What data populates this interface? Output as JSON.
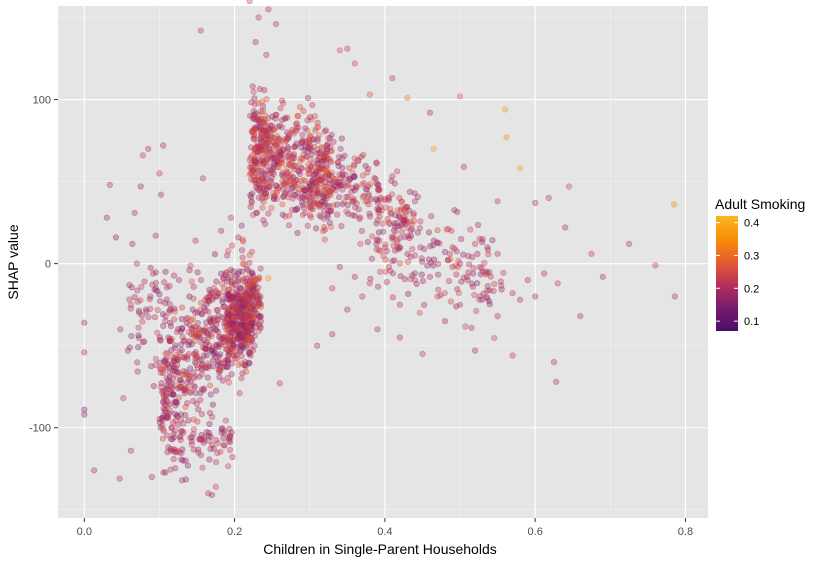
{
  "chart_data": {
    "type": "scatter",
    "title": "",
    "xlabel": "Children in Single-Parent Households",
    "ylabel": "SHAP value",
    "xlim": [
      -0.035,
      0.83
    ],
    "ylim": [
      -155,
      157
    ],
    "x_ticks": [
      0.0,
      0.2,
      0.4,
      0.6,
      0.8
    ],
    "x_tick_labels": [
      "0.0",
      "0.2",
      "0.4",
      "0.6",
      "0.8"
    ],
    "y_ticks": [
      100,
      0,
      -100
    ],
    "y_tick_labels": [
      "100",
      "0",
      "-100"
    ],
    "grid": true,
    "background": "#e5e5e5",
    "point_opacity": 0.35,
    "color_scale": {
      "title": "Adult Smoking",
      "min": 0.07,
      "max": 0.42,
      "ticks": [
        0.1,
        0.2,
        0.3,
        0.4
      ],
      "tick_labels": [
        "0.1",
        "0.2",
        "0.3",
        "0.4"
      ],
      "colors": [
        "#4a0c6b",
        "#781c6d",
        "#b52f5d",
        "#e55c30",
        "#f98e09",
        "#fbb61a"
      ]
    },
    "legend_position": "right",
    "points": [
      [
        0.0,
        -36,
        0.18
      ],
      [
        0.0,
        -54,
        0.2
      ],
      [
        0.0,
        -89,
        0.15
      ],
      [
        0.0,
        -92,
        0.16
      ],
      [
        0.013,
        -126,
        0.2
      ],
      [
        0.03,
        28,
        0.17
      ],
      [
        0.034,
        48,
        0.21
      ],
      [
        0.042,
        16,
        0.16
      ],
      [
        0.047,
        -131,
        0.21
      ],
      [
        0.048,
        -40,
        0.19
      ],
      [
        0.052,
        -82,
        0.22
      ],
      [
        0.058,
        -53,
        0.18
      ],
      [
        0.06,
        -13,
        0.19
      ],
      [
        0.062,
        -114,
        0.2
      ],
      [
        0.064,
        12,
        0.17
      ],
      [
        0.067,
        31,
        0.2
      ],
      [
        0.07,
        0,
        0.21
      ],
      [
        0.075,
        47,
        0.18
      ],
      [
        0.078,
        66,
        0.22
      ],
      [
        0.082,
        -28,
        0.18
      ],
      [
        0.085,
        70,
        0.2
      ],
      [
        0.088,
        -20,
        0.19
      ],
      [
        0.09,
        -130,
        0.2
      ],
      [
        0.095,
        17,
        0.2
      ],
      [
        0.1,
        55,
        0.22
      ],
      [
        0.102,
        42,
        0.18
      ],
      [
        0.105,
        72,
        0.2
      ],
      [
        0.108,
        -5,
        0.16
      ],
      [
        0.112,
        -45,
        0.19
      ],
      [
        0.115,
        -113,
        0.18
      ],
      [
        0.118,
        -70,
        0.2
      ],
      [
        0.122,
        -115,
        0.21
      ],
      [
        0.126,
        -10,
        0.2
      ],
      [
        0.13,
        -132,
        0.19
      ],
      [
        0.135,
        -120,
        0.2
      ],
      [
        0.14,
        -4,
        0.17
      ],
      [
        0.148,
        14,
        0.2
      ],
      [
        0.155,
        142,
        0.22
      ],
      [
        0.158,
        52,
        0.2
      ],
      [
        0.165,
        -140,
        0.2
      ],
      [
        0.17,
        -141,
        0.2
      ],
      [
        0.175,
        -136,
        0.22
      ],
      [
        0.182,
        20,
        0.19
      ],
      [
        0.19,
        5,
        0.2
      ],
      [
        0.195,
        28,
        0.22
      ],
      [
        0.2,
        -9,
        0.3
      ],
      [
        0.205,
        16,
        0.18
      ],
      [
        0.22,
        160,
        0.22
      ],
      [
        0.228,
        135,
        0.2
      ],
      [
        0.232,
        150,
        0.21
      ],
      [
        0.245,
        155,
        0.2
      ],
      [
        0.255,
        146,
        0.22
      ],
      [
        0.26,
        -73,
        0.22
      ],
      [
        0.245,
        -9,
        0.35
      ],
      [
        0.31,
        -50,
        0.2
      ],
      [
        0.33,
        -43,
        0.2
      ],
      [
        0.36,
        122,
        0.24
      ],
      [
        0.34,
        130,
        0.24
      ],
      [
        0.35,
        131,
        0.22
      ],
      [
        0.38,
        103,
        0.26
      ],
      [
        0.41,
        113,
        0.22
      ],
      [
        0.43,
        101,
        0.32
      ],
      [
        0.44,
        38,
        0.2
      ],
      [
        0.46,
        92,
        0.2
      ],
      [
        0.465,
        70,
        0.36
      ],
      [
        0.5,
        102,
        0.26
      ],
      [
        0.505,
        59,
        0.2
      ],
      [
        0.53,
        15,
        0.2
      ],
      [
        0.55,
        38,
        0.22
      ],
      [
        0.56,
        94,
        0.36
      ],
      [
        0.562,
        77,
        0.34
      ],
      [
        0.58,
        58,
        0.38
      ],
      [
        0.59,
        -10,
        0.2
      ],
      [
        0.6,
        37,
        0.2
      ],
      [
        0.612,
        -6,
        0.2
      ],
      [
        0.618,
        40,
        0.22
      ],
      [
        0.625,
        -60,
        0.2
      ],
      [
        0.628,
        -72,
        0.2
      ],
      [
        0.64,
        22,
        0.2
      ],
      [
        0.645,
        47,
        0.24
      ],
      [
        0.66,
        -32,
        0.21
      ],
      [
        0.675,
        6,
        0.22
      ],
      [
        0.69,
        -8,
        0.2
      ],
      [
        0.725,
        12,
        0.21
      ],
      [
        0.76,
        -1,
        0.22
      ],
      [
        0.785,
        36,
        0.34
      ],
      [
        0.786,
        -20,
        0.2
      ],
      [
        0.42,
        -45,
        0.2
      ],
      [
        0.45,
        -55,
        0.22
      ],
      [
        0.48,
        -35,
        0.2
      ],
      [
        0.52,
        -53,
        0.2
      ],
      [
        0.55,
        -32,
        0.2
      ],
      [
        0.57,
        -56,
        0.22
      ],
      [
        0.47,
        -20,
        0.24
      ],
      [
        0.5,
        -25,
        0.2
      ],
      [
        0.4,
        10,
        0.22
      ],
      [
        0.39,
        -40,
        0.2
      ],
      [
        0.37,
        -20,
        0.21
      ],
      [
        0.36,
        -8,
        0.2
      ],
      [
        0.44,
        5,
        0.22
      ],
      [
        0.46,
        -8,
        0.2
      ],
      [
        0.49,
        10,
        0.24
      ],
      [
        0.51,
        -10,
        0.2
      ],
      [
        0.53,
        -5,
        0.22
      ],
      [
        0.55,
        6,
        0.2
      ],
      [
        0.57,
        -18,
        0.21
      ],
      [
        0.58,
        -22,
        0.2
      ],
      [
        0.6,
        -20,
        0.2
      ],
      [
        0.63,
        -12,
        0.22
      ],
      [
        0.5,
        0,
        0.2
      ],
      [
        0.52,
        12,
        0.22
      ],
      [
        0.35,
        -28,
        0.2
      ],
      [
        0.33,
        -15,
        0.22
      ],
      [
        0.34,
        -2,
        0.21
      ],
      [
        0.38,
        -12,
        0.22
      ],
      [
        0.42,
        -25,
        0.21
      ],
      [
        0.44,
        -10,
        0.22
      ],
      [
        0.47,
        13,
        0.2
      ],
      [
        0.49,
        -2,
        0.22
      ]
    ],
    "clusters": [
      {
        "x": [
          0.1,
          0.225
        ],
        "y": [
          -110,
          10
        ],
        "n": 560,
        "seed": 11,
        "tilt": 0.45,
        "colors": [
          0.14,
          0.27
        ]
      },
      {
        "x": [
          0.19,
          0.225
        ],
        "y": [
          -75,
          5
        ],
        "n": 230,
        "seed": 17,
        "tilt": 0.0,
        "colors": [
          0.14,
          0.27
        ]
      },
      {
        "x": [
          0.215,
          0.235
        ],
        "y": [
          -60,
          10
        ],
        "n": 90,
        "seed": 19,
        "tilt": 0.0,
        "colors": [
          0.15,
          0.28
        ]
      },
      {
        "x": [
          0.225,
          0.33
        ],
        "y": [
          10,
          110
        ],
        "n": 480,
        "seed": 23,
        "tilt": -0.2,
        "colors": [
          0.16,
          0.28
        ]
      },
      {
        "x": [
          0.22,
          0.245
        ],
        "y": [
          0,
          130
        ],
        "n": 120,
        "seed": 29,
        "tilt": 0.0,
        "colors": [
          0.17,
          0.28
        ]
      },
      {
        "x": [
          0.3,
          0.44
        ],
        "y": [
          0,
          80
        ],
        "n": 240,
        "seed": 31,
        "tilt": -0.4,
        "colors": [
          0.15,
          0.27
        ]
      },
      {
        "x": [
          0.38,
          0.56
        ],
        "y": [
          -45,
          50
        ],
        "n": 160,
        "seed": 37,
        "tilt": -0.3,
        "colors": [
          0.15,
          0.26
        ]
      },
      {
        "x": [
          0.06,
          0.12
        ],
        "y": [
          -85,
          15
        ],
        "n": 60,
        "seed": 41,
        "tilt": 0.0,
        "colors": [
          0.15,
          0.24
        ]
      },
      {
        "x": [
          0.1,
          0.2
        ],
        "y": [
          -135,
          -85
        ],
        "n": 80,
        "seed": 43,
        "tilt": 0.2,
        "colors": [
          0.15,
          0.24
        ]
      }
    ]
  }
}
